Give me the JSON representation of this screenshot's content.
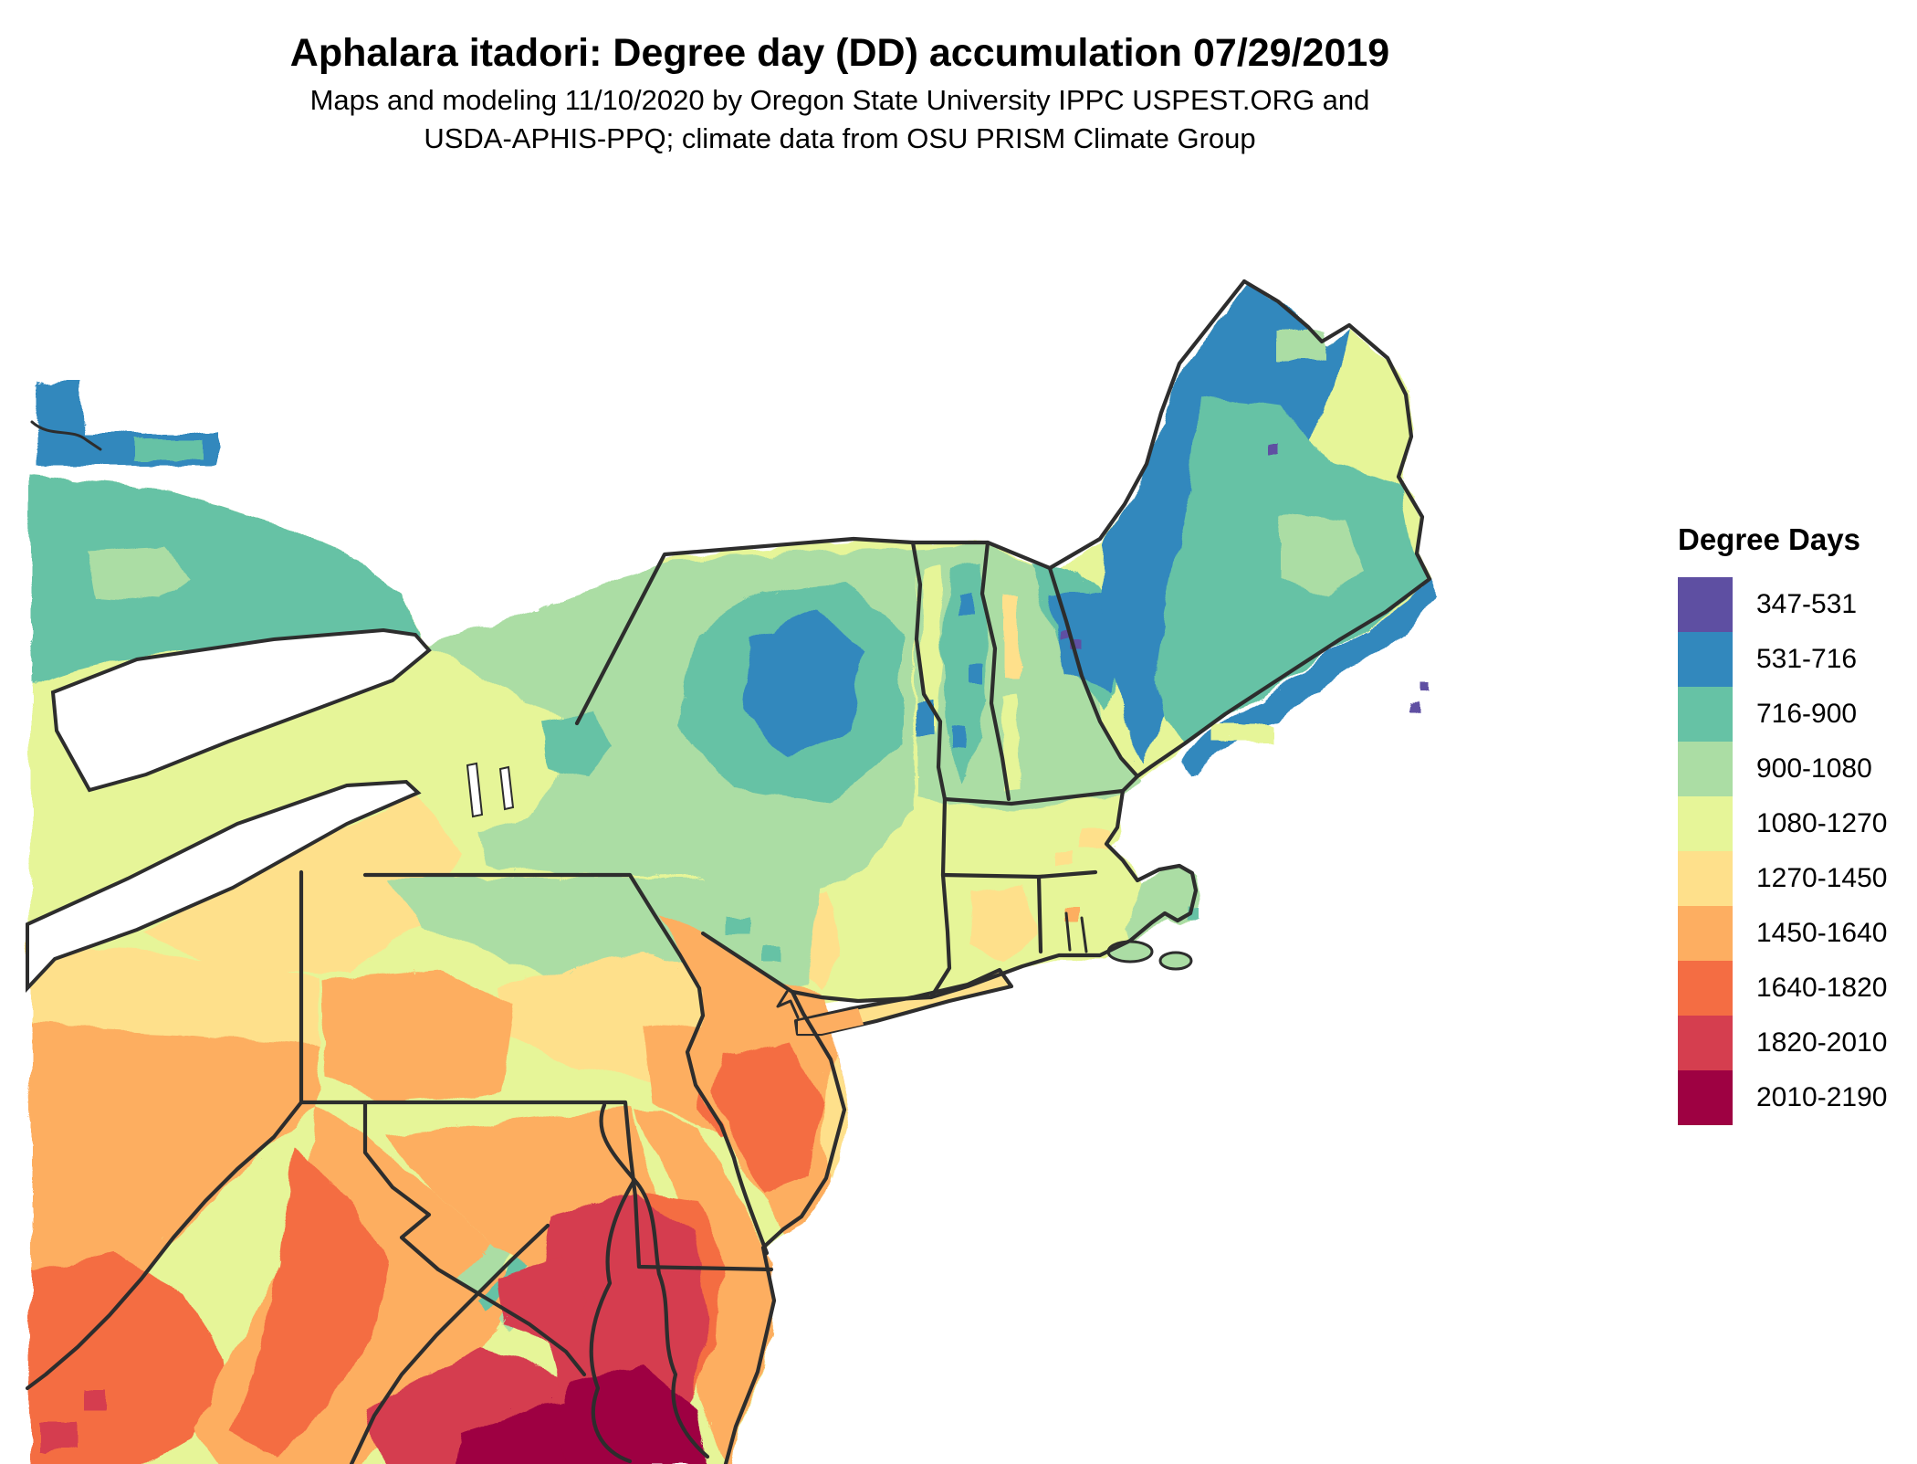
{
  "header": {
    "title": "Aphalara itadori: Degree day (DD) accumulation 07/29/2019",
    "subtitle_line1": "Maps and modeling 11/10/2020 by Oregon State University IPPC USPEST.ORG and",
    "subtitle_line2": "USDA-APHIS-PPQ; climate data from OSU PRISM Climate Group"
  },
  "legend": {
    "title": "Degree Days",
    "classes": [
      {
        "label": "347-531",
        "color": "#5e4fa2"
      },
      {
        "label": "531-716",
        "color": "#3288bd"
      },
      {
        "label": "716-900",
        "color": "#66c2a5"
      },
      {
        "label": "900-1080",
        "color": "#abdda4"
      },
      {
        "label": "1080-1270",
        "color": "#e6f598"
      },
      {
        "label": "1270-1450",
        "color": "#fee08b"
      },
      {
        "label": "1450-1640",
        "color": "#fdae61"
      },
      {
        "label": "1640-1820",
        "color": "#f46d43"
      },
      {
        "label": "1820-2010",
        "color": "#d53e4f"
      },
      {
        "label": "2010-2190",
        "color": "#9e0142"
      }
    ]
  },
  "map": {
    "border_color": "#2d2d2d",
    "water_color": "#ffffff",
    "description": "Raster map of degree-day accumulation over the northeastern United States with state boundaries, Great Lakes, Chesapeake and Delaware Bays; values increase from blue/purple in northern Maine to dark red near the lower Chesapeake Bay."
  }
}
